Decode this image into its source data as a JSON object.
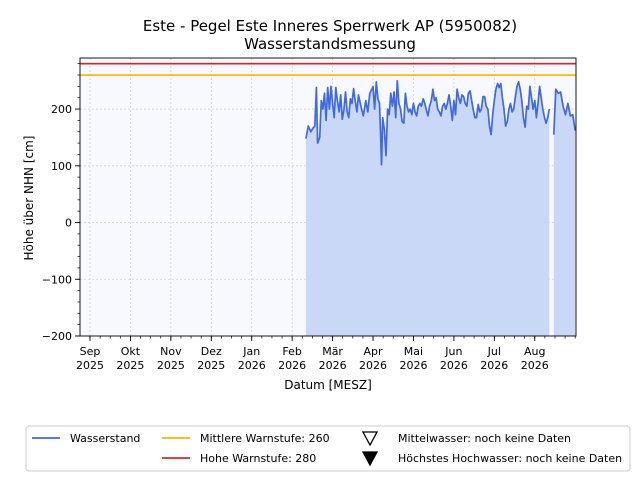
{
  "chart_data": {
    "type": "line",
    "title": "Este - Pegel Este Inneres Sperrwerk AP (5950082)",
    "subtitle": "Wasserstandsmessung",
    "xlabel": "Datum [MESZ]",
    "ylabel": "Höhe über NHN [cm]",
    "ylim": [
      -200,
      290
    ],
    "y_ticks": [
      -200,
      -100,
      0,
      100,
      200
    ],
    "y_tick_labels": [
      "−200",
      "−100",
      "0",
      "100",
      "200"
    ],
    "xlim": [
      0,
      12.02
    ],
    "x_ticks": [
      {
        "pos": 0.0,
        "month": "Sep",
        "year": "2025"
      },
      {
        "pos": 1.0,
        "month": "Okt",
        "year": "2025"
      },
      {
        "pos": 2.0,
        "month": "Nov",
        "year": "2025"
      },
      {
        "pos": 3.0,
        "month": "Dez",
        "year": "2025"
      },
      {
        "pos": 4.0,
        "month": "Jan",
        "year": "2026"
      },
      {
        "pos": 5.0,
        "month": "Feb",
        "year": "2026"
      },
      {
        "pos": 6.0,
        "month": "Mär",
        "year": "2026"
      },
      {
        "pos": 7.0,
        "month": "Apr",
        "year": "2026"
      },
      {
        "pos": 8.0,
        "month": "Mai",
        "year": "2026"
      },
      {
        "pos": 9.0,
        "month": "Jun",
        "year": "2026"
      },
      {
        "pos": 10.0,
        "month": "Jul",
        "year": "2026"
      },
      {
        "pos": 11.0,
        "month": "Aug",
        "year": "2026"
      }
    ],
    "grid": true,
    "thresholds": [
      {
        "name": "Mittlere Warnstufe: 260",
        "value": 260,
        "color": "#ffb300"
      },
      {
        "name": "Hohe Warnstufe: 280",
        "value": 280,
        "color": "#d62728"
      }
    ],
    "series": [
      {
        "name": "Wasserstand",
        "color": "#4169e1",
        "fill": "#c9d8f7",
        "segments": [
          [
            [
              5.34,
              148
            ],
            [
              5.4,
              170
            ],
            [
              5.46,
              160
            ],
            [
              5.52,
              167
            ],
            [
              5.56,
              170
            ],
            [
              5.6,
              238
            ],
            [
              5.63,
              140
            ],
            [
              5.68,
              150
            ],
            [
              5.72,
              215
            ],
            [
              5.76,
              200
            ],
            [
              5.8,
              228
            ],
            [
              5.84,
              180
            ],
            [
              5.88,
              238
            ],
            [
              5.92,
              200
            ],
            [
              5.96,
              240
            ],
            [
              6.0,
              210
            ],
            [
              6.04,
              185
            ],
            [
              6.08,
              238
            ],
            [
              6.12,
              215
            ],
            [
              6.16,
              195
            ],
            [
              6.2,
              225
            ],
            [
              6.24,
              182
            ],
            [
              6.28,
              198
            ],
            [
              6.32,
              230
            ],
            [
              6.36,
              195
            ],
            [
              6.4,
              185
            ],
            [
              6.44,
              218
            ],
            [
              6.48,
              210
            ],
            [
              6.52,
              236
            ],
            [
              6.56,
              215
            ],
            [
              6.6,
              195
            ],
            [
              6.64,
              225
            ],
            [
              6.7,
              205
            ],
            [
              6.76,
              188
            ],
            [
              6.82,
              215
            ],
            [
              6.87,
              195
            ],
            [
              6.92,
              228
            ],
            [
              6.97,
              235
            ],
            [
              7.0,
              240
            ],
            [
              7.04,
              200
            ],
            [
              7.08,
              248
            ],
            [
              7.12,
              218
            ],
            [
              7.16,
              210
            ],
            [
              7.19,
              150
            ],
            [
              7.21,
              102
            ],
            [
              7.24,
              185
            ],
            [
              7.28,
              165
            ],
            [
              7.32,
              118
            ],
            [
              7.36,
              200
            ],
            [
              7.4,
              190
            ],
            [
              7.44,
              228
            ],
            [
              7.48,
              205
            ],
            [
              7.52,
              230
            ],
            [
              7.56,
              185
            ],
            [
              7.6,
              250
            ],
            [
              7.64,
              210
            ],
            [
              7.68,
              200
            ],
            [
              7.72,
              178
            ],
            [
              7.76,
              175
            ],
            [
              7.8,
              228
            ],
            [
              7.84,
              205
            ],
            [
              7.88,
              195
            ],
            [
              7.92,
              200
            ],
            [
              7.96,
              190
            ],
            [
              8.0,
              210
            ],
            [
              8.04,
              195
            ],
            [
              8.08,
              188
            ],
            [
              8.12,
              205
            ],
            [
              8.16,
              210
            ],
            [
              8.2,
              205
            ],
            [
              8.24,
              218
            ],
            [
              8.28,
              210
            ],
            [
              8.32,
              198
            ],
            [
              8.36,
              188
            ],
            [
              8.4,
              205
            ],
            [
              8.44,
              215
            ],
            [
              8.48,
              235
            ],
            [
              8.52,
              215
            ],
            [
              8.56,
              220
            ],
            [
              8.6,
              200
            ],
            [
              8.64,
              195
            ],
            [
              8.68,
              188
            ],
            [
              8.72,
              205
            ],
            [
              8.76,
              210
            ],
            [
              8.8,
              200
            ],
            [
              8.84,
              210
            ],
            [
              8.88,
              225
            ],
            [
              8.92,
              205
            ],
            [
              8.96,
              180
            ],
            [
              9.0,
              215
            ],
            [
              9.04,
              190
            ],
            [
              9.08,
              235
            ],
            [
              9.12,
              220
            ],
            [
              9.16,
              210
            ],
            [
              9.2,
              225
            ],
            [
              9.24,
              222
            ],
            [
              9.28,
              210
            ],
            [
              9.32,
              205
            ],
            [
              9.36,
              228
            ],
            [
              9.4,
              232
            ],
            [
              9.44,
              215
            ],
            [
              9.48,
              198
            ],
            [
              9.52,
              185
            ],
            [
              9.56,
              185
            ],
            [
              9.6,
              208
            ],
            [
              9.64,
              195
            ],
            [
              9.68,
              200
            ],
            [
              9.72,
              222
            ],
            [
              9.76,
              222
            ],
            [
              9.8,
              205
            ],
            [
              9.84,
              200
            ],
            [
              9.88,
              170
            ],
            [
              9.92,
              155
            ],
            [
              9.96,
              190
            ],
            [
              10.0,
              215
            ],
            [
              10.04,
              235
            ],
            [
              10.08,
              245
            ],
            [
              10.12,
              238
            ],
            [
              10.16,
              245
            ],
            [
              10.2,
              220
            ],
            [
              10.24,
              200
            ],
            [
              10.28,
              170
            ],
            [
              10.32,
              178
            ],
            [
              10.36,
              200
            ],
            [
              10.4,
              210
            ],
            [
              10.44,
              195
            ],
            [
              10.48,
              200
            ],
            [
              10.52,
              222
            ],
            [
              10.56,
              240
            ],
            [
              10.6,
              248
            ],
            [
              10.64,
              235
            ],
            [
              10.68,
              215
            ],
            [
              10.72,
              185
            ],
            [
              10.76,
              168
            ],
            [
              10.8,
              205
            ],
            [
              10.84,
              200
            ],
            [
              10.88,
              240
            ],
            [
              10.92,
              220
            ],
            [
              10.96,
              200
            ],
            [
              11.0,
              215
            ],
            [
              11.04,
              185
            ],
            [
              11.08,
              210
            ],
            [
              11.12,
              240
            ],
            [
              11.16,
              220
            ],
            [
              11.2,
              200
            ],
            [
              11.24,
              185
            ],
            [
              11.28,
              175
            ],
            [
              11.32,
              185
            ],
            [
              11.36,
              200
            ]
          ],
          [
            [
              11.47,
              155
            ],
            [
              11.52,
              235
            ],
            [
              11.58,
              228
            ],
            [
              11.64,
              230
            ],
            [
              11.7,
              205
            ],
            [
              11.76,
              190
            ],
            [
              11.82,
              210
            ],
            [
              11.88,
              188
            ],
            [
              11.94,
              190
            ],
            [
              12.0,
              162
            ]
          ]
        ]
      }
    ],
    "legend": {
      "placement": "bottom",
      "entries": [
        {
          "label": "Wasserstand",
          "kind": "line",
          "color": "#4169e1"
        },
        {
          "label": "Mittlere Warnstufe: 260",
          "kind": "line",
          "color": "#ffb300"
        },
        {
          "label": "Mittelwasser: noch keine Daten",
          "kind": "open-triangle",
          "color": "#000000"
        },
        {
          "label": "Hohe Warnstufe: 280",
          "kind": "line",
          "color": "#d62728"
        },
        {
          "label": "Höchstes Hochwasser: noch keine Daten",
          "kind": "filled-triangle",
          "color": "#000000"
        }
      ]
    }
  }
}
